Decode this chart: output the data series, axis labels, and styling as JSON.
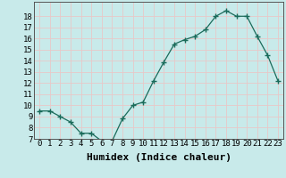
{
  "x": [
    0,
    1,
    2,
    3,
    4,
    5,
    6,
    7,
    8,
    9,
    10,
    11,
    12,
    13,
    14,
    15,
    16,
    17,
    18,
    19,
    20,
    21,
    22,
    23
  ],
  "y": [
    9.5,
    9.5,
    9.0,
    8.5,
    7.5,
    7.5,
    6.8,
    6.8,
    8.8,
    10.0,
    10.3,
    12.2,
    13.9,
    15.5,
    15.9,
    16.2,
    16.8,
    18.0,
    18.5,
    18.0,
    18.0,
    16.2,
    14.5,
    12.2
  ],
  "xlabel": "Humidex (Indice chaleur)",
  "ylim": [
    7,
    19
  ],
  "xlim": [
    -0.5,
    23.5
  ],
  "yticks": [
    7,
    8,
    9,
    10,
    11,
    12,
    13,
    14,
    15,
    16,
    17,
    18
  ],
  "xticks": [
    0,
    1,
    2,
    3,
    4,
    5,
    6,
    7,
    8,
    9,
    10,
    11,
    12,
    13,
    14,
    15,
    16,
    17,
    18,
    19,
    20,
    21,
    22,
    23
  ],
  "line_color": "#1a6b5a",
  "marker": "+",
  "marker_size": 4,
  "bg_color": "#c8eaea",
  "grid_color": "#e8c8c8",
  "axis_color": "#555555",
  "xlabel_fontsize": 8,
  "tick_fontsize": 6.5
}
